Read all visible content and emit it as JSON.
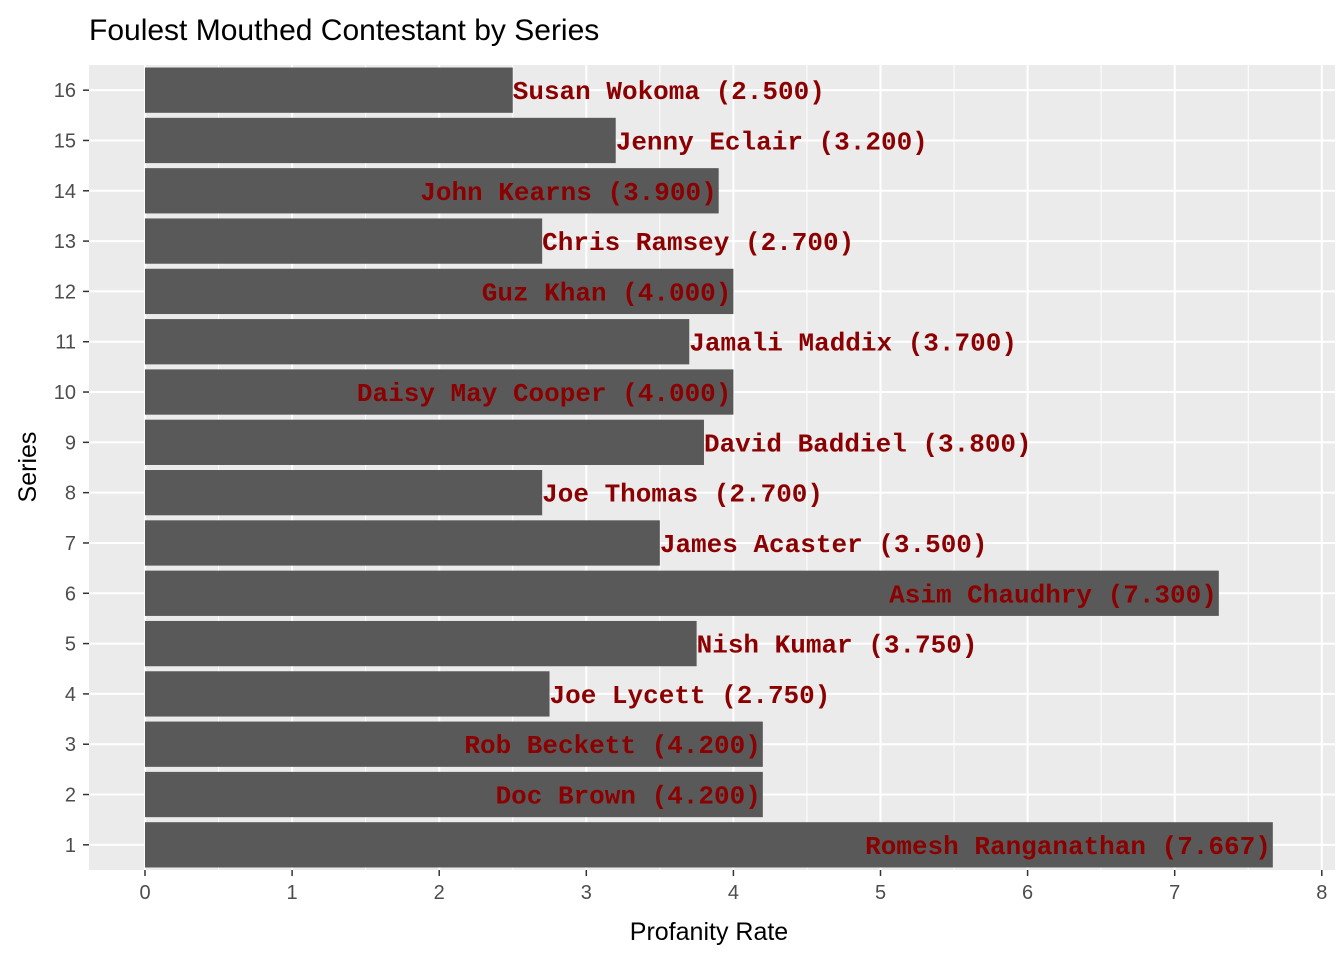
{
  "chart_data": {
    "type": "bar",
    "orientation": "horizontal",
    "title": "Foulest Mouthed Contestant by Series",
    "xlabel": "Profanity Rate",
    "ylabel": "Series",
    "xlim": [
      0,
      8
    ],
    "xticks": [
      "0",
      "1",
      "2",
      "3",
      "4",
      "5",
      "6",
      "7",
      "8"
    ],
    "grid": true,
    "legend": "none",
    "bar_color": "#595959",
    "label_color": "#8b0000",
    "panel_color": "#ebebeb",
    "bars": [
      {
        "series": "1",
        "value": 7.667,
        "label": "Romesh Ranganathan (7.667)",
        "label_position": "inside"
      },
      {
        "series": "2",
        "value": 4.2,
        "label": "Doc Brown (4.200)",
        "label_position": "inside"
      },
      {
        "series": "3",
        "value": 4.2,
        "label": "Rob Beckett (4.200)",
        "label_position": "inside"
      },
      {
        "series": "4",
        "value": 2.75,
        "label": "Joe Lycett (2.750)",
        "label_position": "outside"
      },
      {
        "series": "5",
        "value": 3.75,
        "label": "Nish Kumar (3.750)",
        "label_position": "outside"
      },
      {
        "series": "6",
        "value": 7.3,
        "label": "Asim Chaudhry (7.300)",
        "label_position": "inside"
      },
      {
        "series": "7",
        "value": 3.5,
        "label": "James Acaster (3.500)",
        "label_position": "outside"
      },
      {
        "series": "8",
        "value": 2.7,
        "label": "Joe Thomas (2.700)",
        "label_position": "outside"
      },
      {
        "series": "9",
        "value": 3.8,
        "label": "David Baddiel (3.800)",
        "label_position": "outside"
      },
      {
        "series": "10",
        "value": 4.0,
        "label": "Daisy May Cooper (4.000)",
        "label_position": "inside"
      },
      {
        "series": "11",
        "value": 3.7,
        "label": "Jamali Maddix (3.700)",
        "label_position": "outside"
      },
      {
        "series": "12",
        "value": 4.0,
        "label": "Guz Khan (4.000)",
        "label_position": "inside"
      },
      {
        "series": "13",
        "value": 2.7,
        "label": "Chris Ramsey (2.700)",
        "label_position": "outside"
      },
      {
        "series": "14",
        "value": 3.9,
        "label": "John Kearns (3.900)",
        "label_position": "inside"
      },
      {
        "series": "15",
        "value": 3.2,
        "label": "Jenny Eclair (3.200)",
        "label_position": "outside"
      },
      {
        "series": "16",
        "value": 2.5,
        "label": "Susan Wokoma (2.500)",
        "label_position": "outside"
      }
    ]
  }
}
